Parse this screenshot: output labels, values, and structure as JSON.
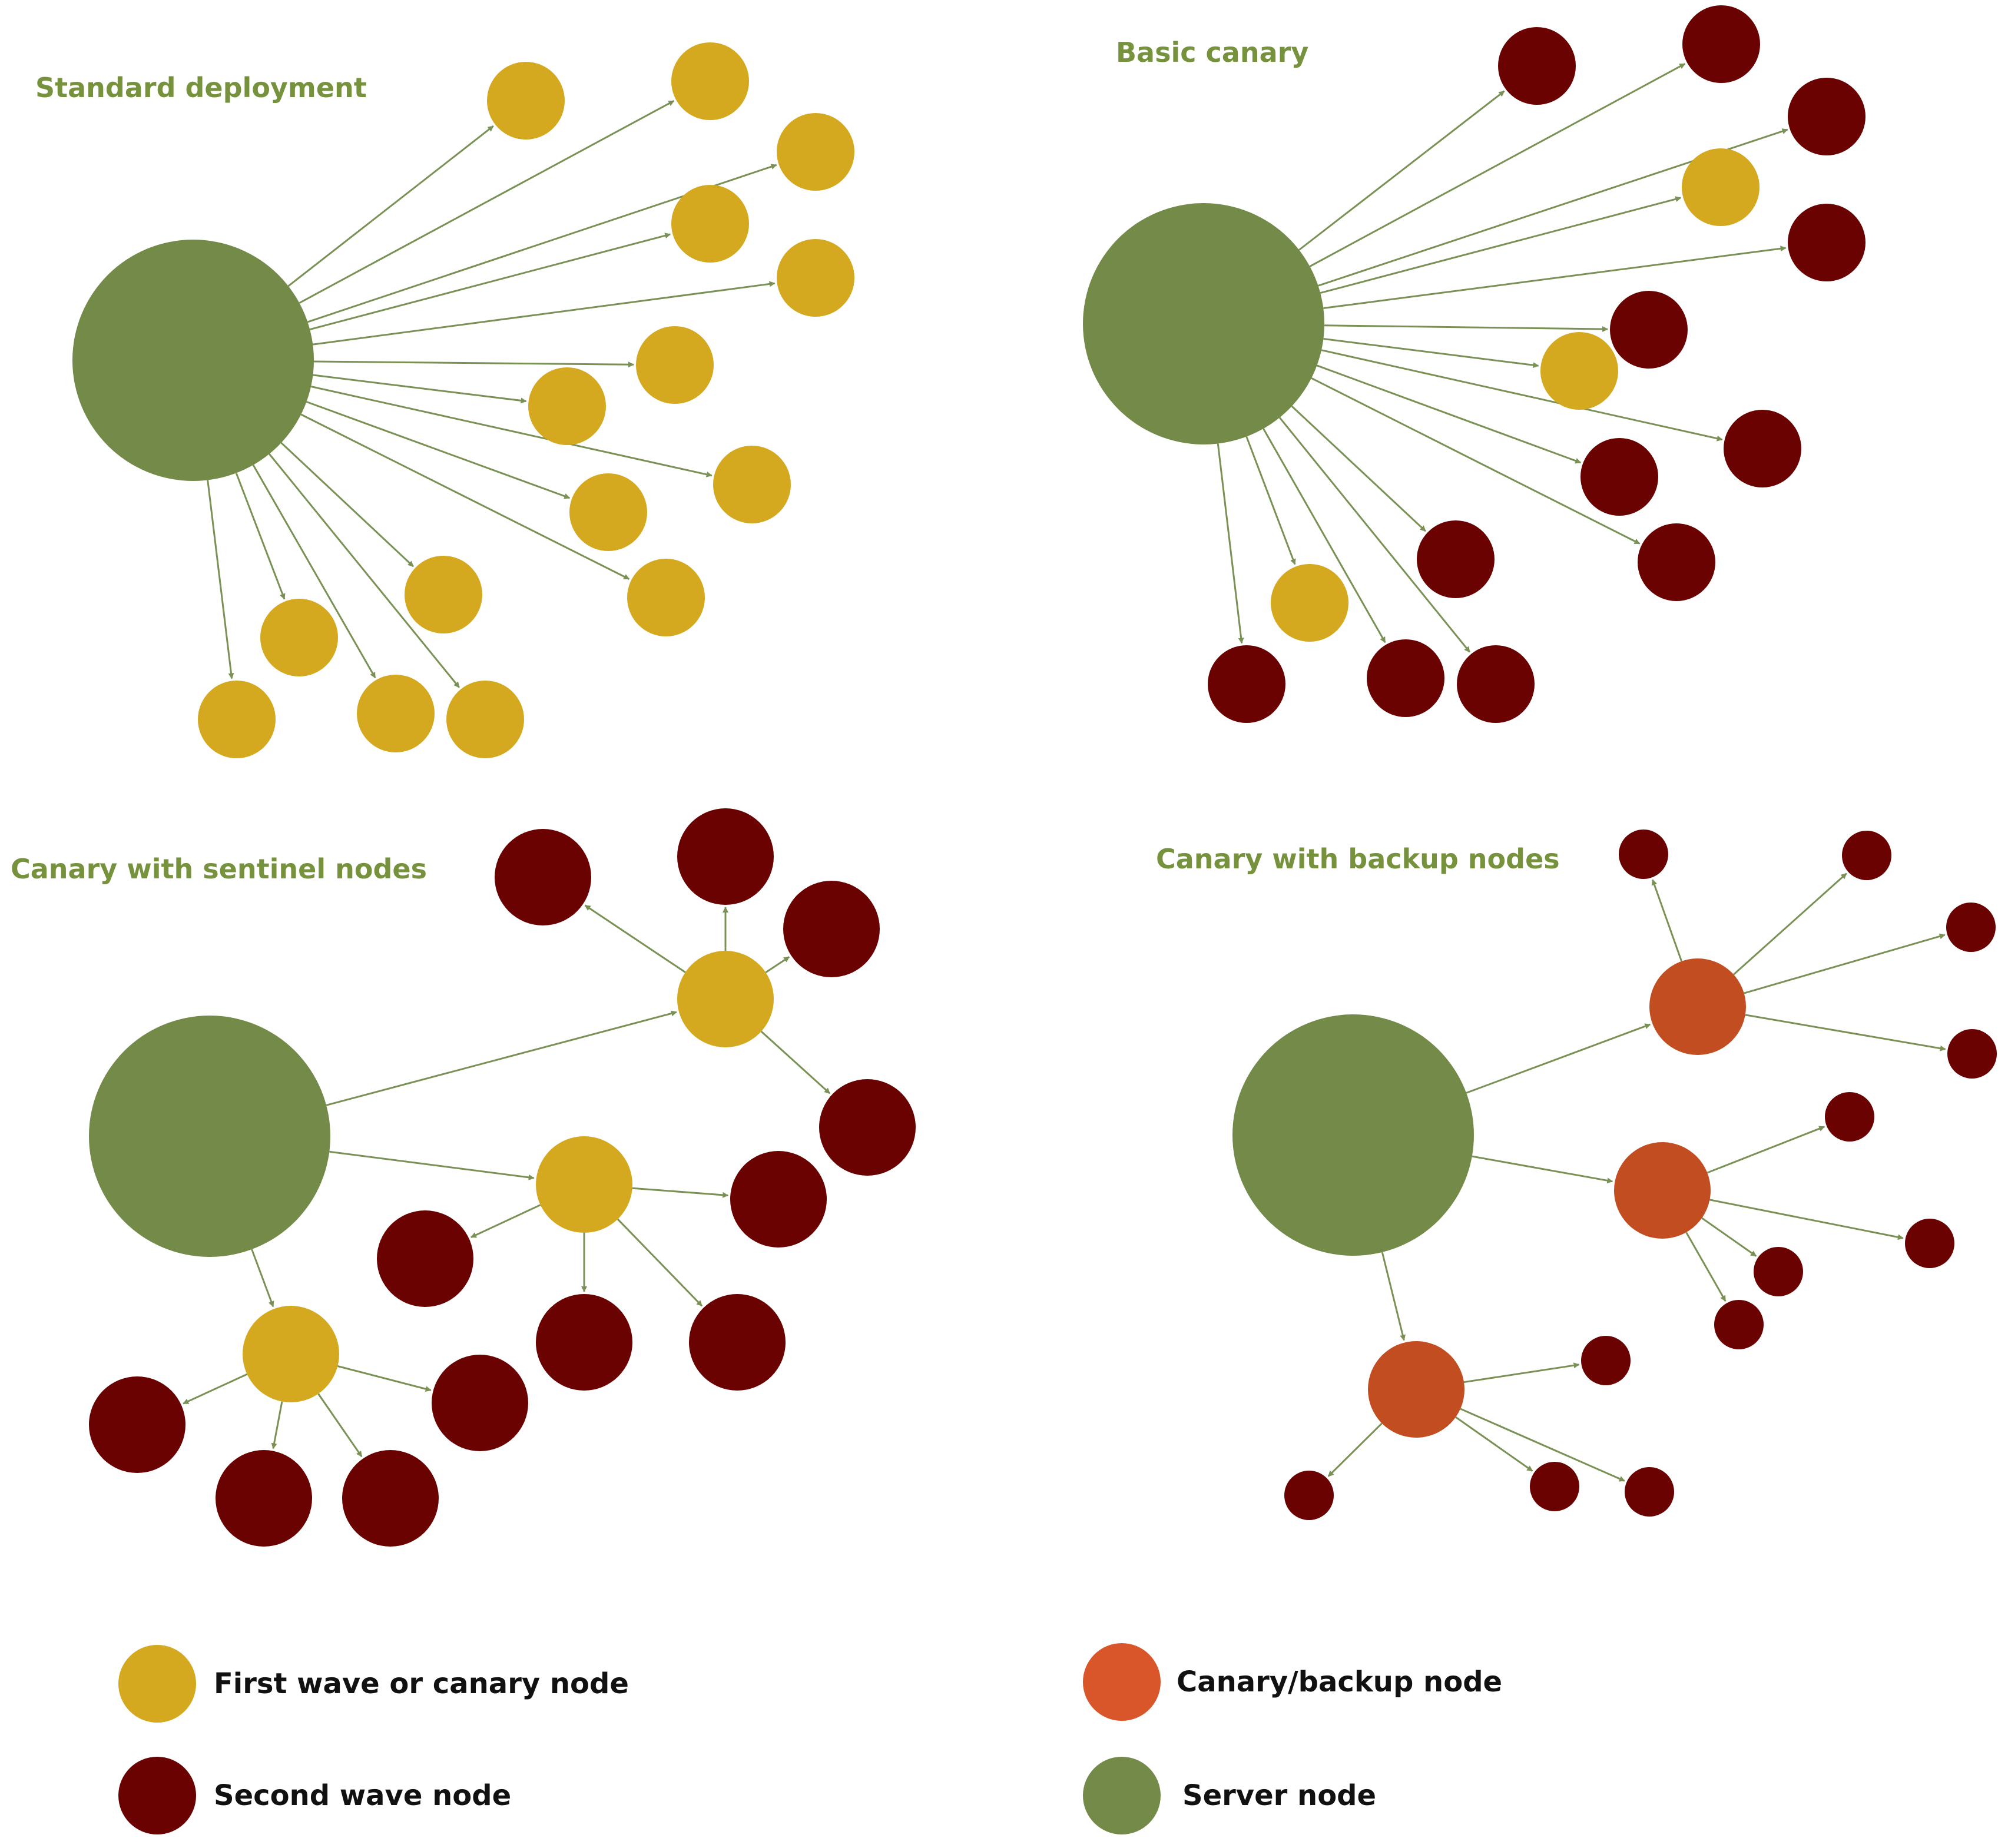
{
  "colors": {
    "server": "#738a49",
    "first_wave": "#d4a81f",
    "second_wave": "#6b0202",
    "canary_backup": "#c24d20",
    "canary_backup_legend": "#d9552a",
    "edge": "#7a9156",
    "title": "#76923c"
  },
  "panels": [
    {
      "id": "standard",
      "title": "Standard deployment",
      "nodes": [
        {
          "id": "s",
          "type": "server"
        },
        {
          "id": "a1",
          "type": "first_wave"
        },
        {
          "id": "a2",
          "type": "first_wave"
        },
        {
          "id": "a3",
          "type": "first_wave"
        },
        {
          "id": "a4",
          "type": "first_wave"
        },
        {
          "id": "a5",
          "type": "first_wave"
        },
        {
          "id": "a6",
          "type": "first_wave"
        },
        {
          "id": "a7",
          "type": "first_wave"
        },
        {
          "id": "a8",
          "type": "first_wave"
        },
        {
          "id": "a9",
          "type": "first_wave"
        },
        {
          "id": "a10",
          "type": "first_wave"
        },
        {
          "id": "a11",
          "type": "first_wave"
        },
        {
          "id": "a12",
          "type": "first_wave"
        },
        {
          "id": "a13",
          "type": "first_wave"
        },
        {
          "id": "a14",
          "type": "first_wave"
        },
        {
          "id": "a15",
          "type": "first_wave"
        }
      ],
      "edges": [
        [
          "s",
          "a1"
        ],
        [
          "s",
          "a2"
        ],
        [
          "s",
          "a3"
        ],
        [
          "s",
          "a4"
        ],
        [
          "s",
          "a5"
        ],
        [
          "s",
          "a6"
        ],
        [
          "s",
          "a7"
        ],
        [
          "s",
          "a8"
        ],
        [
          "s",
          "a9"
        ],
        [
          "s",
          "a10"
        ],
        [
          "s",
          "a11"
        ],
        [
          "s",
          "a12"
        ],
        [
          "s",
          "a13"
        ],
        [
          "s",
          "a14"
        ],
        [
          "s",
          "a15"
        ]
      ]
    },
    {
      "id": "basic",
      "title": "Basic canary",
      "nodes": [
        {
          "id": "s",
          "type": "server"
        },
        {
          "id": "b1",
          "type": "second_wave"
        },
        {
          "id": "b2",
          "type": "second_wave"
        },
        {
          "id": "b3",
          "type": "second_wave"
        },
        {
          "id": "b4",
          "type": "first_wave"
        },
        {
          "id": "b5",
          "type": "second_wave"
        },
        {
          "id": "b6",
          "type": "second_wave"
        },
        {
          "id": "b7",
          "type": "first_wave"
        },
        {
          "id": "b8",
          "type": "second_wave"
        },
        {
          "id": "b9",
          "type": "second_wave"
        },
        {
          "id": "b10",
          "type": "second_wave"
        },
        {
          "id": "b11",
          "type": "second_wave"
        },
        {
          "id": "b12",
          "type": "first_wave"
        },
        {
          "id": "b13",
          "type": "second_wave"
        },
        {
          "id": "b14",
          "type": "second_wave"
        },
        {
          "id": "b15",
          "type": "second_wave"
        }
      ],
      "edges": [
        [
          "s",
          "b1"
        ],
        [
          "s",
          "b2"
        ],
        [
          "s",
          "b3"
        ],
        [
          "s",
          "b4"
        ],
        [
          "s",
          "b5"
        ],
        [
          "s",
          "b6"
        ],
        [
          "s",
          "b7"
        ],
        [
          "s",
          "b8"
        ],
        [
          "s",
          "b9"
        ],
        [
          "s",
          "b10"
        ],
        [
          "s",
          "b11"
        ],
        [
          "s",
          "b12"
        ],
        [
          "s",
          "b13"
        ],
        [
          "s",
          "b14"
        ],
        [
          "s",
          "b15"
        ]
      ]
    },
    {
      "id": "sentinel",
      "title": "Canary with sentinel nodes",
      "nodes": [
        {
          "id": "s",
          "type": "server"
        },
        {
          "id": "c1",
          "type": "first_wave"
        },
        {
          "id": "c2",
          "type": "first_wave"
        },
        {
          "id": "c3",
          "type": "first_wave"
        },
        {
          "id": "d1",
          "type": "second_wave"
        },
        {
          "id": "d2",
          "type": "second_wave"
        },
        {
          "id": "d3",
          "type": "second_wave"
        },
        {
          "id": "d4",
          "type": "second_wave"
        },
        {
          "id": "d5",
          "type": "second_wave"
        },
        {
          "id": "d6",
          "type": "second_wave"
        },
        {
          "id": "d7",
          "type": "second_wave"
        },
        {
          "id": "d8",
          "type": "second_wave"
        },
        {
          "id": "d9",
          "type": "second_wave"
        },
        {
          "id": "d10",
          "type": "second_wave"
        },
        {
          "id": "d11",
          "type": "second_wave"
        },
        {
          "id": "d12",
          "type": "second_wave"
        }
      ],
      "edges": [
        [
          "s",
          "c1"
        ],
        [
          "s",
          "c2"
        ],
        [
          "s",
          "c3"
        ],
        [
          "c1",
          "d1"
        ],
        [
          "c1",
          "d2"
        ],
        [
          "c1",
          "d3"
        ],
        [
          "c1",
          "d4"
        ],
        [
          "c2",
          "d5"
        ],
        [
          "c2",
          "d6"
        ],
        [
          "c2",
          "d7"
        ],
        [
          "c2",
          "d8"
        ],
        [
          "c3",
          "d9"
        ],
        [
          "c3",
          "d10"
        ],
        [
          "c3",
          "d11"
        ],
        [
          "c3",
          "d12"
        ]
      ]
    },
    {
      "id": "backup",
      "title": "Canary with backup nodes",
      "nodes": [
        {
          "id": "s",
          "type": "server"
        },
        {
          "id": "k1",
          "type": "canary_backup"
        },
        {
          "id": "k2",
          "type": "canary_backup"
        },
        {
          "id": "k3",
          "type": "canary_backup"
        },
        {
          "id": "e1",
          "type": "second_wave"
        },
        {
          "id": "e2",
          "type": "second_wave"
        },
        {
          "id": "e3",
          "type": "second_wave"
        },
        {
          "id": "e4",
          "type": "second_wave"
        },
        {
          "id": "e5",
          "type": "second_wave"
        },
        {
          "id": "e6",
          "type": "second_wave"
        },
        {
          "id": "e7",
          "type": "second_wave"
        },
        {
          "id": "e8",
          "type": "second_wave"
        },
        {
          "id": "e9",
          "type": "second_wave"
        },
        {
          "id": "e10",
          "type": "second_wave"
        },
        {
          "id": "e11",
          "type": "second_wave"
        },
        {
          "id": "e12",
          "type": "second_wave"
        }
      ],
      "edges": [
        [
          "s",
          "k1"
        ],
        [
          "s",
          "k2"
        ],
        [
          "s",
          "k3"
        ],
        [
          "k1",
          "e1"
        ],
        [
          "k1",
          "e2"
        ],
        [
          "k1",
          "e3"
        ],
        [
          "k1",
          "e4"
        ],
        [
          "k2",
          "e5"
        ],
        [
          "k2",
          "e6"
        ],
        [
          "k2",
          "e7"
        ],
        [
          "k2",
          "e8"
        ],
        [
          "k3",
          "e9"
        ],
        [
          "k3",
          "e10"
        ],
        [
          "k3",
          "e11"
        ],
        [
          "k3",
          "e12"
        ]
      ]
    }
  ],
  "legend": [
    {
      "key": "first_wave",
      "label": "First wave or canary node"
    },
    {
      "key": "second_wave",
      "label": "Second wave node"
    },
    {
      "key": "canary_backup",
      "label": "Canary/backup node"
    },
    {
      "key": "server",
      "label": "Server node"
    }
  ]
}
